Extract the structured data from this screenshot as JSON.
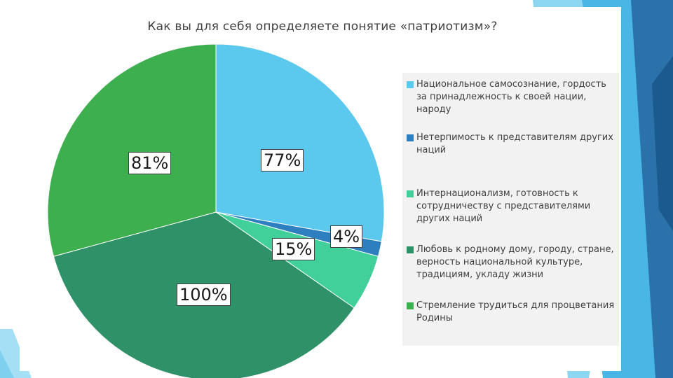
{
  "chart_data": {
    "type": "pie",
    "title": "Как вы для себя определяете понятие «патриотизм»?",
    "series": [
      {
        "name": "Национальное самосознание, гордость за принадлежность к своей нации, народу",
        "value": 77,
        "value_label": "77%",
        "color": "#5bc8ee"
      },
      {
        "name": "Нетерпимость к представителям других наций",
        "value": 4,
        "value_label": "4%",
        "color": "#2e7fc0"
      },
      {
        "name": "Интернационализм, готовность к сотрудничеству с представителями других наций",
        "value": 15,
        "value_label": "15%",
        "color": "#41cf9a"
      },
      {
        "name": "Любовь к родному дому, городу, стране, верность национальной культуре, традициям, укладу жизни",
        "value": 100,
        "value_label": "100%",
        "color": "#2e9168"
      },
      {
        "name": "Стремление трудиться для процветания Родины",
        "value": 81,
        "value_label": "81%",
        "color": "#3daf4f"
      }
    ],
    "legend_position": "right"
  }
}
